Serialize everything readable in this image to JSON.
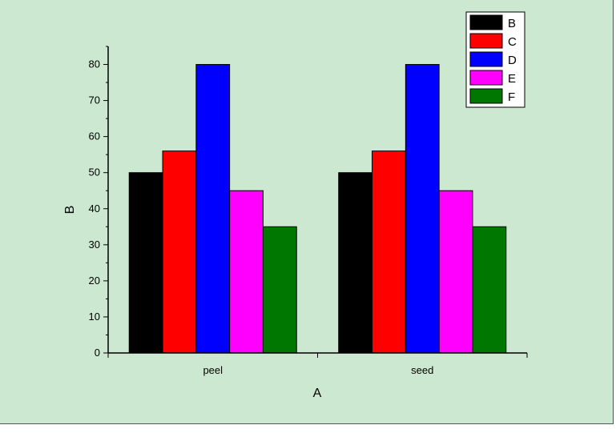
{
  "chart_data": {
    "type": "bar",
    "categories": [
      "peel",
      "seed"
    ],
    "series": [
      {
        "name": "B",
        "color": "#000000",
        "values": [
          50,
          50
        ]
      },
      {
        "name": "C",
        "color": "#ff0000",
        "values": [
          56,
          56
        ]
      },
      {
        "name": "D",
        "color": "#0000ff",
        "values": [
          80,
          80
        ]
      },
      {
        "name": "E",
        "color": "#ff00ff",
        "values": [
          45,
          45
        ]
      },
      {
        "name": "F",
        "color": "#007700",
        "values": [
          35,
          35
        ]
      }
    ],
    "xlabel": "A",
    "ylabel": "B",
    "ylim": [
      0,
      85
    ],
    "yticks": [
      0,
      10,
      20,
      30,
      40,
      50,
      60,
      70,
      80
    ],
    "grid": false,
    "legend_position": "top-right",
    "background_color": "#cce8d0"
  }
}
